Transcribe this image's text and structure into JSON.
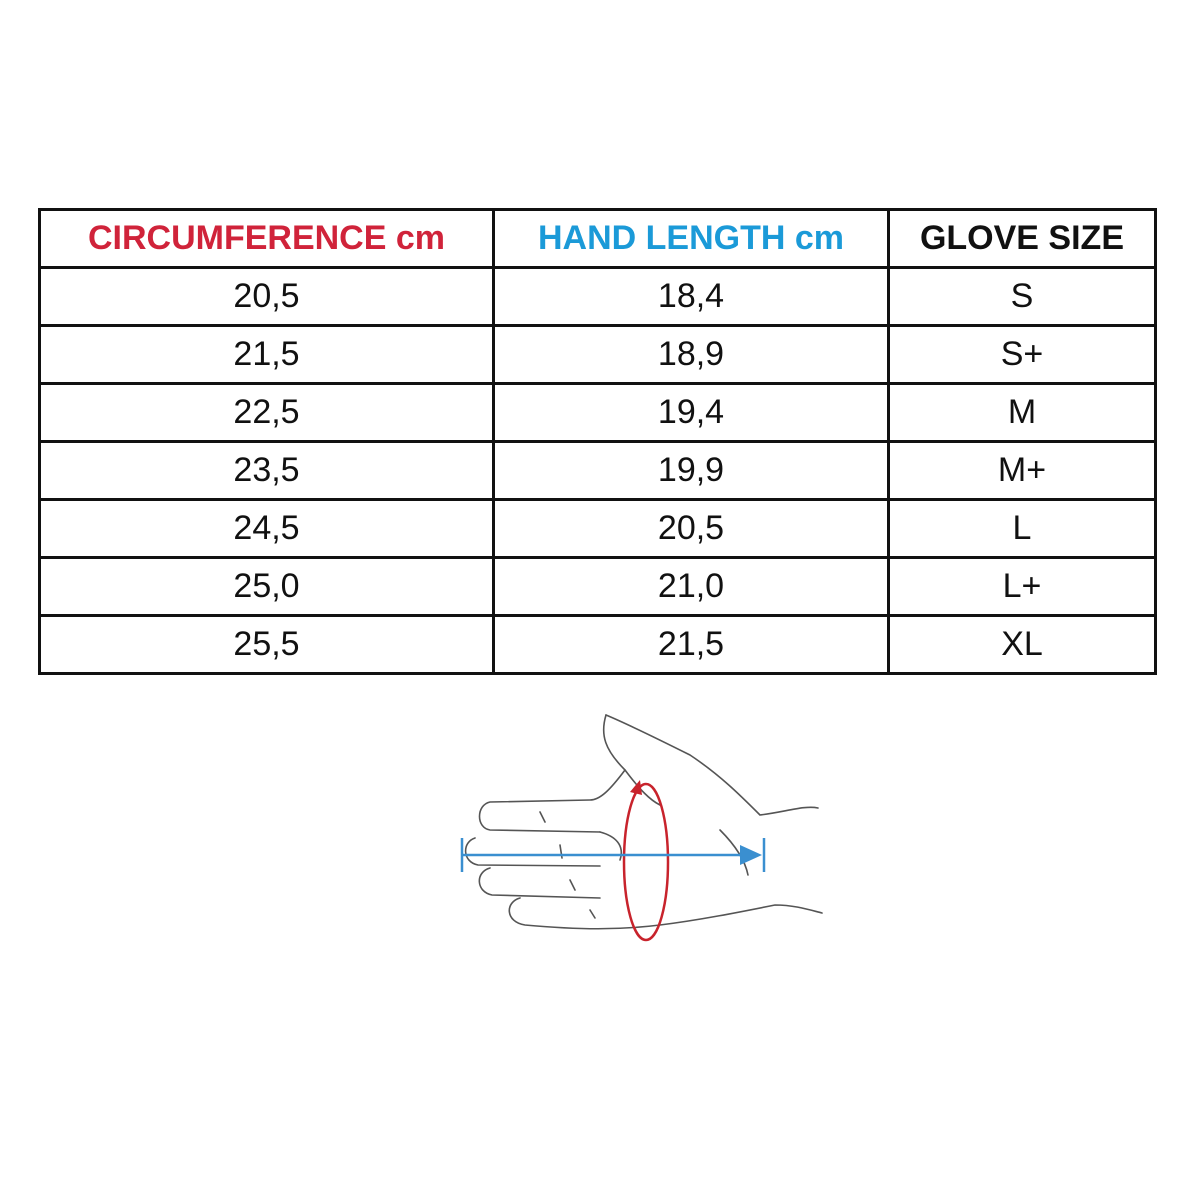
{
  "table": {
    "header": [
      "CIRCUMFERENCE cm",
      "HAND LENGTH cm",
      "GLOVE SIZE"
    ],
    "rows": [
      [
        "20,5",
        "18,4",
        "S"
      ],
      [
        "21,5",
        "18,9",
        "S+"
      ],
      [
        "22,5",
        "19,4",
        "M"
      ],
      [
        "23,5",
        "19,9",
        "M+"
      ],
      [
        "24,5",
        "20,5",
        "L"
      ],
      [
        "25,0",
        "21,0",
        "L+"
      ],
      [
        "25,5",
        "21,5",
        "XL"
      ]
    ]
  }
}
